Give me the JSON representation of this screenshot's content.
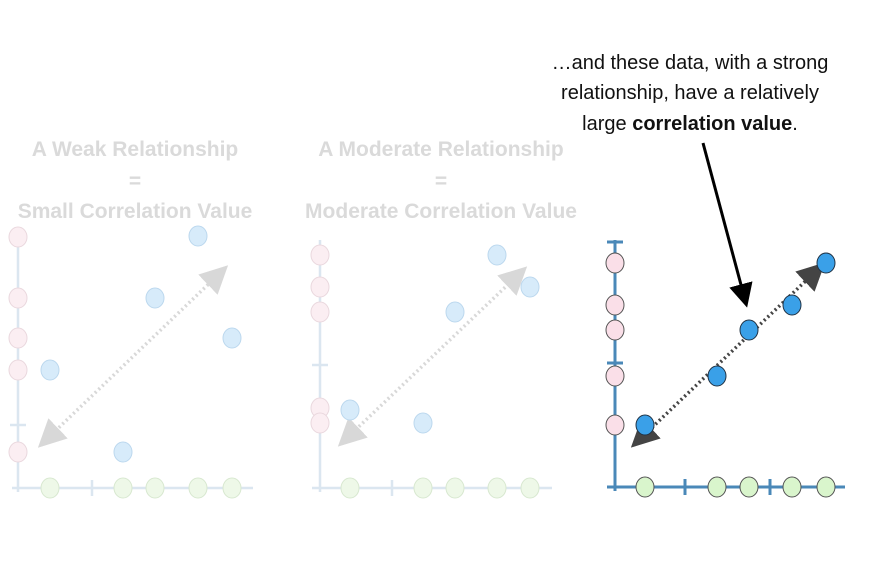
{
  "panels": [
    {
      "title_lines": [
        "A Weak Relationship",
        "=",
        "Small Correlation Value"
      ]
    },
    {
      "title_lines": [
        "A Moderate Relationship",
        "=",
        "Moderate Correlation Value"
      ]
    }
  ],
  "callout": {
    "line1": "…and these data, with a strong",
    "line2": "relationship, have a relatively",
    "line3_start": "large ",
    "line3_bold": "correlation value",
    "line3_end": "."
  }
}
